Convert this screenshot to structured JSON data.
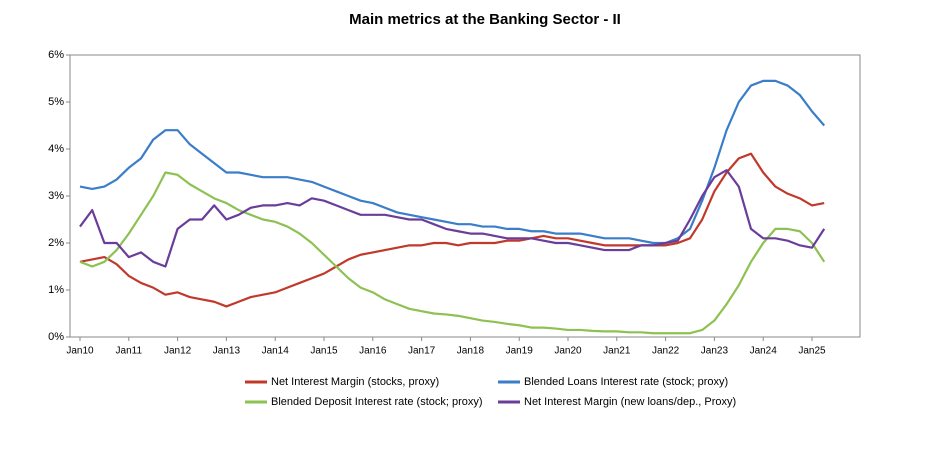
{
  "chart_data": {
    "type": "line",
    "title": "Main metrics at the Banking Sector  -  II",
    "categories": [
      "Jan10",
      null,
      null,
      null,
      "Jan11",
      null,
      null,
      null,
      "Jan12",
      null,
      null,
      null,
      "Jan13",
      null,
      null,
      null,
      "Jan14",
      null,
      null,
      null,
      "Jan15",
      null,
      null,
      null,
      "Jan16",
      null,
      null,
      null,
      "Jan17",
      null,
      null,
      null,
      "Jan18",
      null,
      null,
      null,
      "Jan19",
      null,
      null,
      null,
      "Jan20",
      null,
      null,
      null,
      "Jan21",
      null,
      null,
      null,
      "Jan22",
      null,
      null,
      null,
      "Jan23",
      null,
      null,
      null,
      "Jan24",
      null,
      null,
      null,
      "Jan25",
      null
    ],
    "series": [
      {
        "name": "Net Interest Margin (stocks, proxy)",
        "color": "#c0392b",
        "values": [
          1.6,
          1.65,
          1.7,
          1.55,
          1.3,
          1.15,
          1.05,
          0.9,
          0.95,
          0.85,
          0.8,
          0.75,
          0.65,
          0.75,
          0.85,
          0.9,
          0.95,
          1.05,
          1.15,
          1.25,
          1.35,
          1.5,
          1.65,
          1.75,
          1.8,
          1.85,
          1.9,
          1.95,
          1.95,
          2.0,
          2.0,
          1.95,
          2.0,
          2.0,
          2.0,
          2.05,
          2.05,
          2.1,
          2.15,
          2.1,
          2.1,
          2.05,
          2.0,
          1.95,
          1.95,
          1.95,
          1.95,
          1.95,
          1.95,
          2.0,
          2.1,
          2.5,
          3.1,
          3.5,
          3.8,
          3.9,
          3.5,
          3.2,
          3.05,
          2.95,
          2.8,
          2.85
        ]
      },
      {
        "name": "Blended Loans Interest rate (stock; proxy)",
        "color": "#3a7dc9",
        "values": [
          3.2,
          3.15,
          3.2,
          3.35,
          3.6,
          3.8,
          4.2,
          4.4,
          4.4,
          4.1,
          3.9,
          3.7,
          3.5,
          3.5,
          3.45,
          3.4,
          3.4,
          3.4,
          3.35,
          3.3,
          3.2,
          3.1,
          3.0,
          2.9,
          2.85,
          2.75,
          2.65,
          2.6,
          2.55,
          2.5,
          2.45,
          2.4,
          2.4,
          2.35,
          2.35,
          2.3,
          2.3,
          2.25,
          2.25,
          2.2,
          2.2,
          2.2,
          2.15,
          2.1,
          2.1,
          2.1,
          2.05,
          2.0,
          2.0,
          2.1,
          2.3,
          2.9,
          3.6,
          4.4,
          5.0,
          5.35,
          5.45,
          5.45,
          5.35,
          5.15,
          4.8,
          4.5
        ]
      },
      {
        "name": "Blended Deposit Interest rate (stock; proxy)",
        "color": "#8dc152",
        "values": [
          1.6,
          1.5,
          1.6,
          1.85,
          2.2,
          2.6,
          3.0,
          3.5,
          3.45,
          3.25,
          3.1,
          2.95,
          2.85,
          2.7,
          2.6,
          2.5,
          2.45,
          2.35,
          2.2,
          2.0,
          1.75,
          1.5,
          1.25,
          1.05,
          0.95,
          0.8,
          0.7,
          0.6,
          0.55,
          0.5,
          0.48,
          0.45,
          0.4,
          0.35,
          0.32,
          0.28,
          0.25,
          0.2,
          0.2,
          0.18,
          0.15,
          0.15,
          0.13,
          0.12,
          0.12,
          0.1,
          0.1,
          0.08,
          0.08,
          0.08,
          0.08,
          0.15,
          0.35,
          0.7,
          1.1,
          1.6,
          2.0,
          2.3,
          2.3,
          2.25,
          2.0,
          1.6
        ]
      },
      {
        "name": "Net Interest Margin (new loans/dep., Proxy)",
        "color": "#6a3d9a",
        "values": [
          2.35,
          2.7,
          2.0,
          2.0,
          1.7,
          1.8,
          1.6,
          1.5,
          2.3,
          2.5,
          2.5,
          2.8,
          2.5,
          2.6,
          2.75,
          2.8,
          2.8,
          2.85,
          2.8,
          2.95,
          2.9,
          2.8,
          2.7,
          2.6,
          2.6,
          2.6,
          2.55,
          2.5,
          2.5,
          2.4,
          2.3,
          2.25,
          2.2,
          2.2,
          2.15,
          2.1,
          2.1,
          2.1,
          2.05,
          2.0,
          2.0,
          1.95,
          1.9,
          1.85,
          1.85,
          1.85,
          1.95,
          1.95,
          2.0,
          2.05,
          2.5,
          3.0,
          3.4,
          3.55,
          3.2,
          2.3,
          2.1,
          2.1,
          2.05,
          1.95,
          1.9,
          2.3
        ]
      }
    ],
    "ylim": [
      0,
      6
    ],
    "yticks": [
      {
        "value": 0,
        "label": "0%"
      },
      {
        "value": 1,
        "label": "1%"
      },
      {
        "value": 2,
        "label": "2%"
      },
      {
        "value": 3,
        "label": "3%"
      },
      {
        "value": 4,
        "label": "4%"
      },
      {
        "value": 5,
        "label": "5%"
      },
      {
        "value": 6,
        "label": "6%"
      }
    ],
    "grid": false
  }
}
